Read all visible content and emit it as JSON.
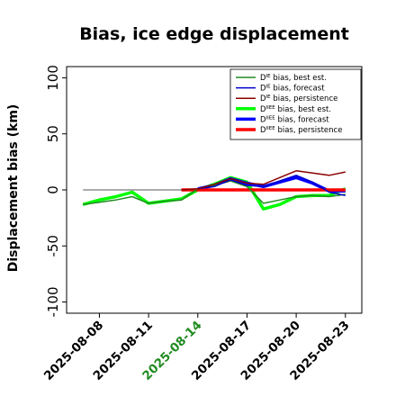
{
  "chart_data": {
    "type": "line",
    "title": "Bias, ice edge displacement",
    "ylabel": "Displacement bias (km)",
    "xlabel": "",
    "ylim": [
      -110,
      110
    ],
    "xlim": [
      "2025-08-06",
      "2025-08-24"
    ],
    "yticks": [
      -100,
      -50,
      0,
      50,
      100
    ],
    "ytick_labels": [
      "-100",
      "-50",
      "0",
      "50",
      "100"
    ],
    "xticks": [
      "2025-08-08",
      "2025-08-11",
      "2025-08-14",
      "2025-08-17",
      "2025-08-20",
      "2025-08-23"
    ],
    "highlight_tick": "2025-08-14",
    "highlight_color": "#228b22",
    "grid": false,
    "legend_position": "top-right",
    "zero_line": {
      "from": "2025-08-07",
      "to": "2025-08-23",
      "color": "#555555"
    },
    "series": [
      {
        "name": "bias, best est.",
        "prefix": "D",
        "sup": "IE",
        "color": "#228b22",
        "width": 1.5,
        "x": [
          "2025-08-07",
          "2025-08-08",
          "2025-08-09",
          "2025-08-10",
          "2025-08-11",
          "2025-08-12",
          "2025-08-13",
          "2025-08-14",
          "2025-08-15",
          "2025-08-16",
          "2025-08-17",
          "2025-08-18",
          "2025-08-19",
          "2025-08-20",
          "2025-08-21",
          "2025-08-22",
          "2025-08-23"
        ],
        "y": [
          -13,
          -11,
          -9,
          -6,
          -12,
          -10,
          -9,
          1,
          4,
          8,
          3,
          -12,
          -9,
          -6,
          -5,
          -6,
          -4
        ]
      },
      {
        "name": "bias, forecast",
        "prefix": "D",
        "sup": "IE",
        "color": "#0000cd",
        "width": 1.5,
        "x": [
          "2025-08-14",
          "2025-08-15",
          "2025-08-16",
          "2025-08-17",
          "2025-08-18",
          "2025-08-19",
          "2025-08-20",
          "2025-08-21",
          "2025-08-22",
          "2025-08-23"
        ],
        "y": [
          1,
          3,
          9,
          4,
          3,
          8,
          13,
          7,
          -2,
          -5
        ]
      },
      {
        "name": "bias, persistence",
        "prefix": "D",
        "sup": "IE",
        "color": "#8b0000",
        "width": 1.5,
        "x": [
          "2025-08-13",
          "2025-08-14",
          "2025-08-15",
          "2025-08-16",
          "2025-08-17",
          "2025-08-18",
          "2025-08-19",
          "2025-08-20",
          "2025-08-21",
          "2025-08-22",
          "2025-08-23"
        ],
        "y": [
          0,
          1,
          5,
          10,
          6,
          5,
          11,
          17,
          15,
          13,
          16
        ]
      },
      {
        "name": "bias, best est.",
        "prefix": "D",
        "sup": "IIEE",
        "color": "#00ff00",
        "width": 3.5,
        "x": [
          "2025-08-07",
          "2025-08-08",
          "2025-08-09",
          "2025-08-10",
          "2025-08-11",
          "2025-08-12",
          "2025-08-13",
          "2025-08-14",
          "2025-08-15",
          "2025-08-16",
          "2025-08-17",
          "2025-08-18",
          "2025-08-19",
          "2025-08-20",
          "2025-08-21",
          "2025-08-22",
          "2025-08-23"
        ],
        "y": [
          -13,
          -9,
          -6,
          -2,
          -12,
          -10,
          -8,
          0,
          5,
          11,
          7,
          -17,
          -13,
          -6,
          -5,
          -5,
          1
        ]
      },
      {
        "name": "bias, forecast",
        "prefix": "D",
        "sup": "IIEE",
        "color": "#0000ff",
        "width": 3.5,
        "x": [
          "2025-08-14",
          "2025-08-15",
          "2025-08-16",
          "2025-08-17",
          "2025-08-18",
          "2025-08-19",
          "2025-08-20",
          "2025-08-21",
          "2025-08-22",
          "2025-08-23"
        ],
        "y": [
          1,
          4,
          10,
          6,
          3,
          7,
          11,
          6,
          -1,
          -1
        ]
      },
      {
        "name": "bias, persistence",
        "prefix": "D",
        "sup": "IIEE",
        "color": "#ff0000",
        "width": 3.5,
        "x": [
          "2025-08-13",
          "2025-08-14",
          "2025-08-15",
          "2025-08-16",
          "2025-08-17",
          "2025-08-18",
          "2025-08-19",
          "2025-08-20",
          "2025-08-21",
          "2025-08-22",
          "2025-08-23"
        ],
        "y": [
          0,
          0,
          0,
          0,
          0,
          0,
          0,
          0,
          0,
          0,
          0
        ]
      }
    ]
  }
}
